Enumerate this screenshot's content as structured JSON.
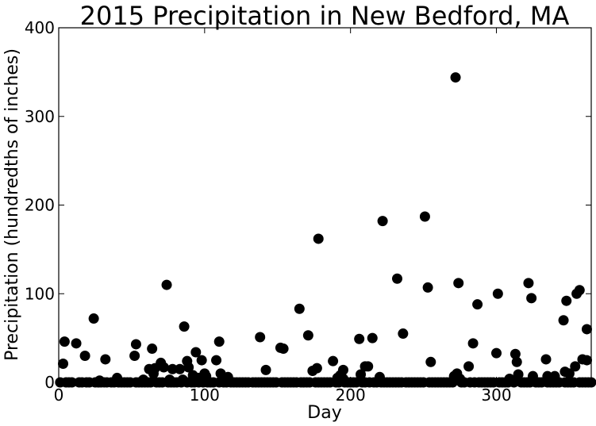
{
  "chart_data": {
    "type": "scatter",
    "title": "2015 Precipitation in New Bedford, MA",
    "xlabel": "Day",
    "ylabel": "Precipitation (hundredths of inches)",
    "xlim": [
      0,
      365
    ],
    "ylim": [
      0,
      400
    ],
    "xticks": [
      "0",
      "100",
      "200",
      "300"
    ],
    "xtick_values": [
      0,
      100,
      200,
      300
    ],
    "yticks": [
      "0",
      "100",
      "200",
      "300",
      "400"
    ],
    "ytick_values": [
      0,
      100,
      200,
      300,
      400
    ],
    "grid": false,
    "marker_color": "#000000",
    "zero_days": [
      1,
      5,
      7,
      9,
      14,
      16,
      19,
      21,
      25,
      27,
      29,
      31,
      33,
      36,
      38,
      41,
      43,
      45,
      47,
      49,
      53,
      55,
      57,
      59,
      61,
      63,
      67,
      69,
      71,
      75,
      77,
      79,
      81,
      84,
      88,
      91,
      93,
      96,
      99,
      102,
      104,
      106,
      110,
      113,
      115,
      118,
      120,
      122,
      124,
      126,
      128,
      130,
      133,
      135,
      137,
      139,
      141,
      143,
      145,
      147,
      149,
      153,
      155,
      157,
      159,
      161,
      163,
      166,
      168,
      170,
      172,
      176,
      178,
      180,
      182,
      184,
      186,
      190,
      192,
      196,
      198,
      200,
      202,
      204,
      208,
      210,
      213,
      216,
      218,
      221,
      223,
      225,
      227,
      229,
      231,
      233,
      235,
      238,
      240,
      242,
      244,
      246,
      248,
      250,
      254,
      256,
      258,
      260,
      262,
      264,
      266,
      268,
      270,
      276,
      278,
      282,
      285,
      288,
      290,
      292,
      294,
      296,
      298,
      302,
      304,
      306,
      308,
      312,
      317,
      319,
      321,
      323,
      327,
      329,
      331,
      335,
      337,
      339,
      341,
      343,
      347,
      349,
      351,
      353,
      357,
      359,
      361,
      363,
      365
    ],
    "points": [
      [
        3,
        21
      ],
      [
        4,
        46
      ],
      [
        12,
        44
      ],
      [
        18,
        30
      ],
      [
        24,
        72
      ],
      [
        28,
        2
      ],
      [
        32,
        26
      ],
      [
        40,
        5
      ],
      [
        52,
        30
      ],
      [
        53,
        43
      ],
      [
        58,
        3
      ],
      [
        62,
        15
      ],
      [
        64,
        38
      ],
      [
        65,
        10
      ],
      [
        66,
        16
      ],
      [
        70,
        22
      ],
      [
        72,
        17
      ],
      [
        74,
        110
      ],
      [
        76,
        3
      ],
      [
        78,
        15
      ],
      [
        83,
        15
      ],
      [
        85,
        3
      ],
      [
        86,
        63
      ],
      [
        88,
        24
      ],
      [
        89,
        17
      ],
      [
        92,
        8
      ],
      [
        94,
        34
      ],
      [
        96,
        5
      ],
      [
        98,
        25
      ],
      [
        100,
        10
      ],
      [
        101,
        7
      ],
      [
        108,
        25
      ],
      [
        110,
        46
      ],
      [
        111,
        10
      ],
      [
        116,
        6
      ],
      [
        138,
        51
      ],
      [
        142,
        14
      ],
      [
        152,
        39
      ],
      [
        154,
        38
      ],
      [
        165,
        83
      ],
      [
        171,
        53
      ],
      [
        174,
        13
      ],
      [
        177,
        16
      ],
      [
        178,
        162
      ],
      [
        188,
        24
      ],
      [
        191,
        5
      ],
      [
        193,
        8
      ],
      [
        195,
        14
      ],
      [
        195,
        4
      ],
      [
        206,
        49
      ],
      [
        207,
        9
      ],
      [
        210,
        18
      ],
      [
        212,
        18
      ],
      [
        215,
        50
      ],
      [
        220,
        6
      ],
      [
        222,
        182
      ],
      [
        232,
        117
      ],
      [
        236,
        55
      ],
      [
        251,
        187
      ],
      [
        253,
        107
      ],
      [
        255,
        23
      ],
      [
        271,
        7
      ],
      [
        272,
        344
      ],
      [
        273,
        10
      ],
      [
        274,
        112
      ],
      [
        275,
        4
      ],
      [
        281,
        18
      ],
      [
        284,
        44
      ],
      [
        287,
        88
      ],
      [
        300,
        33
      ],
      [
        301,
        100
      ],
      [
        309,
        4
      ],
      [
        313,
        32
      ],
      [
        314,
        23
      ],
      [
        315,
        9
      ],
      [
        322,
        112
      ],
      [
        324,
        95
      ],
      [
        325,
        7
      ],
      [
        334,
        26
      ],
      [
        335,
        7
      ],
      [
        340,
        7
      ],
      [
        346,
        70
      ],
      [
        347,
        12
      ],
      [
        348,
        92
      ],
      [
        350,
        10
      ],
      [
        354,
        18
      ],
      [
        355,
        100
      ],
      [
        357,
        104
      ],
      [
        359,
        26
      ],
      [
        362,
        60
      ],
      [
        362,
        25
      ]
    ]
  }
}
